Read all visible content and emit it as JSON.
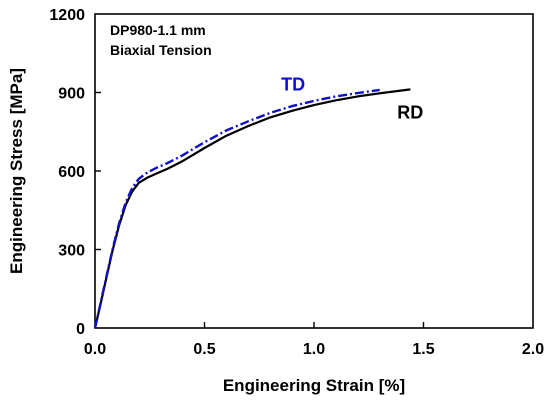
{
  "chart_data": {
    "type": "line",
    "title": "",
    "xlabel": "Engineering Strain [%]",
    "ylabel": "Engineering Stress [MPa]",
    "xlim": [
      0,
      2.0
    ],
    "ylim": [
      0,
      1200
    ],
    "x_ticks": [
      "0.0",
      "0.5",
      "1.0",
      "1.5",
      "2.0"
    ],
    "y_ticks": [
      "0",
      "300",
      "600",
      "900",
      "1200"
    ],
    "x_tick_values": [
      0,
      0.5,
      1.0,
      1.5,
      2.0
    ],
    "y_tick_values": [
      0,
      300,
      600,
      900,
      1200
    ],
    "grid": false,
    "legend": "none",
    "annotations": [
      "DP980-1.1 mm",
      "Biaxial Tension"
    ],
    "series": [
      {
        "name": "TD",
        "color": "#1010c8",
        "line_style": "dash-dot",
        "label_at": [
          0.85,
          907
        ],
        "x": [
          0,
          0.02,
          0.05,
          0.08,
          0.11,
          0.14,
          0.17,
          0.2,
          0.24,
          0.28,
          0.33,
          0.4,
          0.5,
          0.6,
          0.7,
          0.8,
          0.9,
          1.0,
          1.1,
          1.2,
          1.3
        ],
        "y": [
          0,
          75,
          190,
          300,
          400,
          480,
          535,
          570,
          595,
          612,
          630,
          660,
          710,
          755,
          790,
          822,
          848,
          868,
          885,
          898,
          910
        ]
      },
      {
        "name": "RD",
        "color": "#000000",
        "line_style": "solid",
        "label_at": [
          1.38,
          800
        ],
        "x": [
          0,
          0.02,
          0.05,
          0.08,
          0.11,
          0.14,
          0.17,
          0.2,
          0.24,
          0.28,
          0.33,
          0.4,
          0.5,
          0.6,
          0.7,
          0.8,
          0.9,
          1.0,
          1.1,
          1.2,
          1.3,
          1.44
        ],
        "y": [
          0,
          72,
          185,
          295,
          392,
          470,
          522,
          555,
          575,
          590,
          608,
          638,
          688,
          735,
          772,
          805,
          830,
          852,
          870,
          885,
          897,
          912
        ]
      }
    ]
  }
}
